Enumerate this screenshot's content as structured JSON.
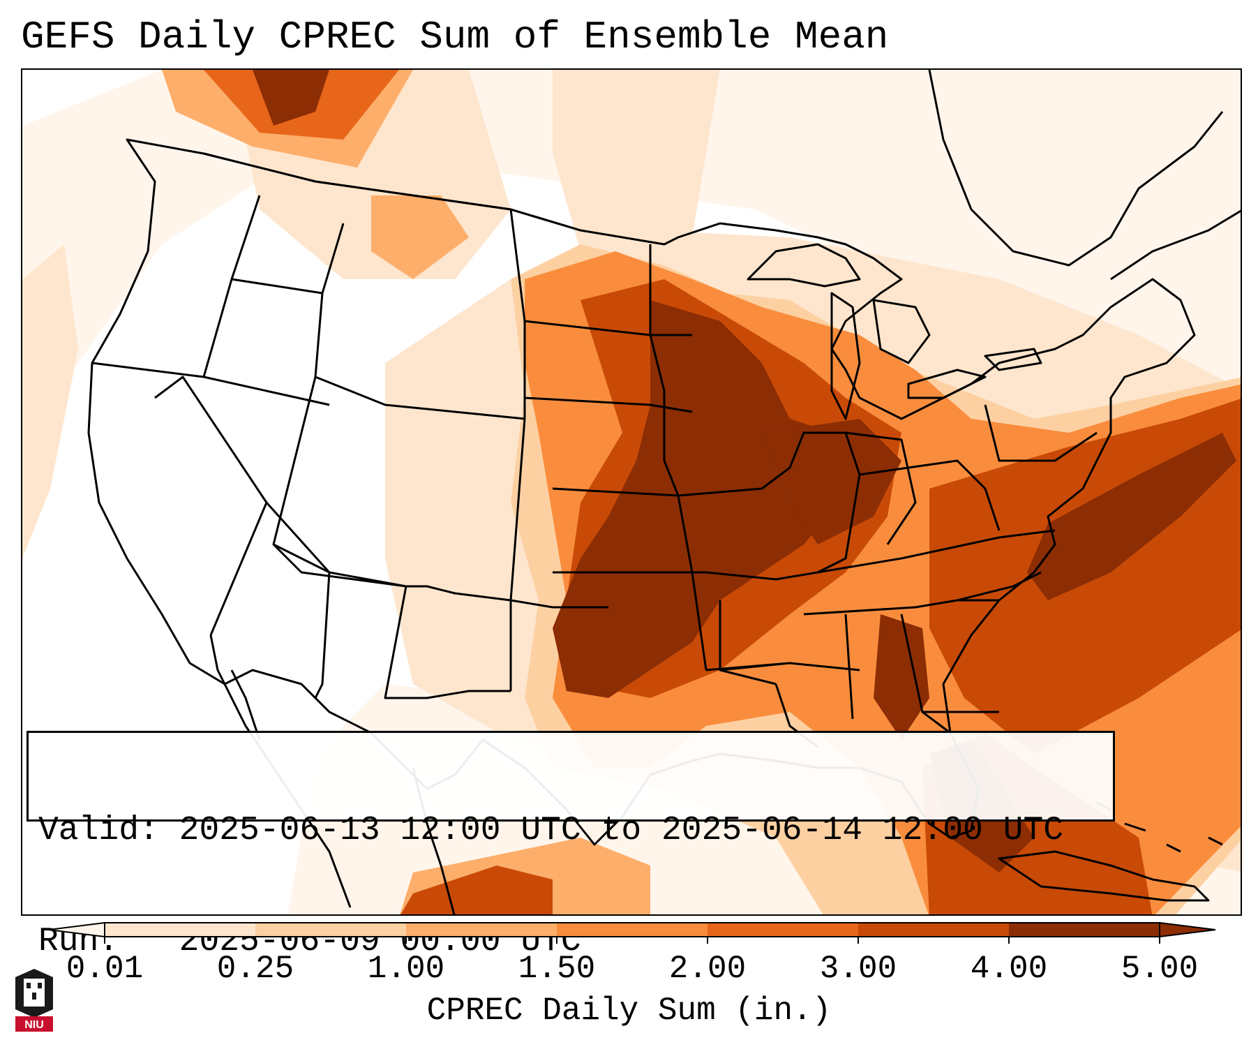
{
  "title": "GEFS Daily CPREC Sum of Ensemble Mean",
  "info": {
    "valid_label": "Valid:",
    "valid_value": "2025-06-13 12:00 UTC to 2025-06-14 12:00 UTC",
    "run_label": "Run:",
    "run_value": "2025-06-09 00:00 UTC"
  },
  "colorbar": {
    "label": "CPREC Daily Sum (in.)",
    "ticks": [
      "0.01",
      "0.25",
      "1.00",
      "1.50",
      "2.00",
      "3.00",
      "4.00",
      "5.00"
    ],
    "colors": [
      "#fff5eb",
      "#fee6ce",
      "#fdd0a2",
      "#fdae6b",
      "#f98d3d",
      "#e8661a",
      "#c84a06",
      "#8c2d04"
    ],
    "extend": "both"
  },
  "map": {
    "projection": "Lambert Conformal, CONUS",
    "background_color": "#ffffff",
    "boundary_color": "#000000"
  },
  "logo": {
    "text": "NIU",
    "name": "Northern Illinois University seal"
  }
}
